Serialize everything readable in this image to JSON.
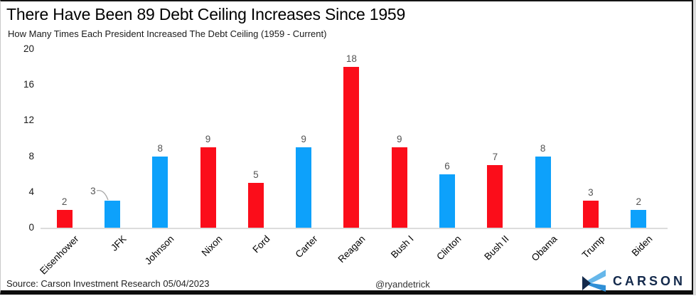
{
  "title": "There Have Been 89 Debt Ceiling Increases Since 1959",
  "subtitle": "How Many Times Each President Increased The Debt Ceiling (1959 - Current)",
  "footer": {
    "source": "Source: Carson Investment Research 05/04/2023",
    "handle": "@ryandetrick",
    "brand": "CARSON"
  },
  "colors": {
    "republican_red": "#fb0d1a",
    "democrat_blue": "#0da1fb",
    "value_label_gray": "#545454",
    "axis_line_gray": "#dcdcdc",
    "brand_navy": "#13294b",
    "brand_light_blue": "#66b7ea",
    "brand_mid_blue": "#2f8fd6"
  },
  "chart_data": {
    "type": "bar",
    "title": "There Have Been 89 Debt Ceiling Increases Since 1959",
    "subtitle": "How Many Times Each President Increased The Debt Ceiling (1959 - Current)",
    "categories": [
      "Eisenhower",
      "JFK",
      "Johnson",
      "Nixon",
      "Ford",
      "Carter",
      "Reagan",
      "Bush I",
      "Clinton",
      "Bush II",
      "Obama",
      "Trump",
      "Biden"
    ],
    "values": [
      2,
      3,
      8,
      9,
      5,
      9,
      18,
      9,
      6,
      7,
      8,
      3,
      2
    ],
    "parties": [
      "R",
      "D",
      "D",
      "R",
      "R",
      "D",
      "R",
      "R",
      "D",
      "R",
      "D",
      "R",
      "D"
    ],
    "party_color_key": {
      "R": "republican_red",
      "D": "democrat_blue"
    },
    "data_labels": [
      "2",
      "3",
      "8",
      "9",
      "5",
      "9",
      "18",
      "9",
      "6",
      "7",
      "8",
      "3",
      "2"
    ],
    "total": 89,
    "xlabel": "",
    "ylabel": "",
    "ylim": [
      0,
      20
    ],
    "yticks": [
      0,
      4,
      8,
      12,
      16,
      20
    ],
    "grid": false,
    "legend": "none",
    "callout": {
      "category": "JFK",
      "label": "3"
    }
  }
}
